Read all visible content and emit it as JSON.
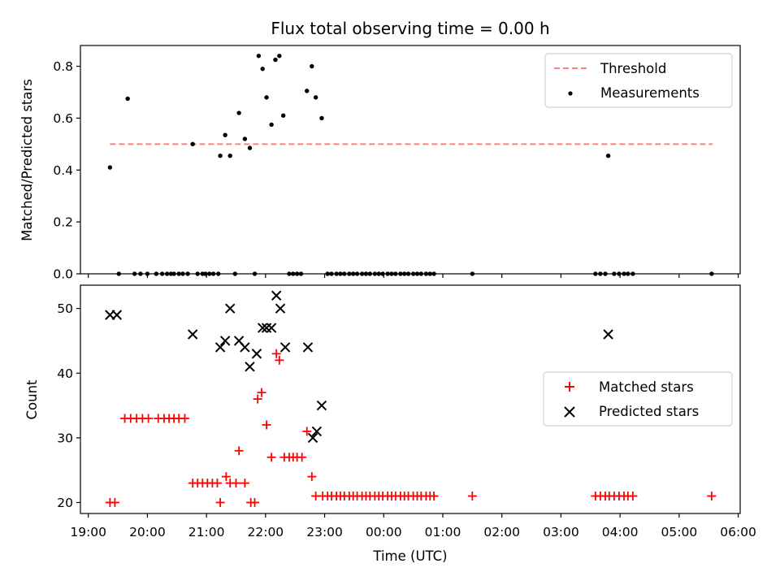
{
  "chart_data": [
    {
      "type": "scatter",
      "title": "Flux total observing time = 0.00 h",
      "xlabel": "",
      "ylabel": "Matched/Predicted stars",
      "xlim": [
        "18:52",
        "06:02"
      ],
      "ylim": [
        0,
        0.88
      ],
      "yticks": [
        "0.0",
        "0.2",
        "0.4",
        "0.6",
        "0.8"
      ],
      "legend": "top-right",
      "grid": false,
      "series": [
        {
          "name": "Threshold",
          "style": "dashed-line",
          "color": "#ff7f7f",
          "points": [
            [
              "19:22",
              0.5
            ],
            [
              "05:34",
              0.5
            ]
          ]
        },
        {
          "name": "Measurements",
          "style": "dot",
          "color": "#000000",
          "points": [
            [
              "19:22",
              0.41
            ],
            [
              "19:31",
              0.0
            ],
            [
              "19:40",
              0.675
            ],
            [
              "19:47",
              0.0
            ],
            [
              "19:53",
              0.0
            ],
            [
              "20:00",
              0.0
            ],
            [
              "20:09",
              0.0
            ],
            [
              "20:15",
              0.0
            ],
            [
              "20:20",
              0.0
            ],
            [
              "20:24",
              0.0
            ],
            [
              "20:27",
              0.0
            ],
            [
              "20:32",
              0.0
            ],
            [
              "20:36",
              0.0
            ],
            [
              "20:41",
              0.0
            ],
            [
              "20:46",
              0.5
            ],
            [
              "20:51",
              0.0
            ],
            [
              "20:56",
              0.0
            ],
            [
              "20:59",
              0.0
            ],
            [
              "21:03",
              0.0
            ],
            [
              "21:07",
              0.0
            ],
            [
              "21:12",
              0.0
            ],
            [
              "21:14",
              0.455
            ],
            [
              "21:19",
              0.535
            ],
            [
              "21:24",
              0.455
            ],
            [
              "21:29",
              0.0
            ],
            [
              "21:33",
              0.62
            ],
            [
              "21:39",
              0.52
            ],
            [
              "21:44",
              0.485
            ],
            [
              "21:49",
              0.0
            ],
            [
              "21:53",
              0.84
            ],
            [
              "21:57",
              0.79
            ],
            [
              "22:01",
              0.68
            ],
            [
              "22:06",
              0.575
            ],
            [
              "22:10",
              0.825
            ],
            [
              "22:14",
              0.84
            ],
            [
              "22:18",
              0.61
            ],
            [
              "22:24",
              0.0
            ],
            [
              "22:28",
              0.0
            ],
            [
              "22:32",
              0.0
            ],
            [
              "22:36",
              0.0
            ],
            [
              "22:42",
              0.705
            ],
            [
              "22:47",
              0.8
            ],
            [
              "22:51",
              0.68
            ],
            [
              "22:57",
              0.6
            ],
            [
              "23:03",
              0.0
            ],
            [
              "23:07",
              0.0
            ],
            [
              "23:12",
              0.0
            ],
            [
              "23:16",
              0.0
            ],
            [
              "23:20",
              0.0
            ],
            [
              "23:25",
              0.0
            ],
            [
              "23:29",
              0.0
            ],
            [
              "23:33",
              0.0
            ],
            [
              "23:38",
              0.0
            ],
            [
              "23:42",
              0.0
            ],
            [
              "23:46",
              0.0
            ],
            [
              "23:51",
              0.0
            ],
            [
              "23:55",
              0.0
            ],
            [
              "23:59",
              0.0
            ],
            [
              "00:04",
              0.0
            ],
            [
              "00:08",
              0.0
            ],
            [
              "00:12",
              0.0
            ],
            [
              "00:17",
              0.0
            ],
            [
              "00:21",
              0.0
            ],
            [
              "00:25",
              0.0
            ],
            [
              "00:30",
              0.0
            ],
            [
              "00:34",
              0.0
            ],
            [
              "00:38",
              0.0
            ],
            [
              "00:43",
              0.0
            ],
            [
              "00:47",
              0.0
            ],
            [
              "00:51",
              0.0
            ],
            [
              "01:30",
              0.0
            ],
            [
              "03:35",
              0.0
            ],
            [
              "03:40",
              0.0
            ],
            [
              "03:45",
              0.0
            ],
            [
              "03:48",
              0.455
            ],
            [
              "03:54",
              0.0
            ],
            [
              "03:59",
              0.0
            ],
            [
              "04:04",
              0.0
            ],
            [
              "04:08",
              0.0
            ],
            [
              "04:13",
              0.0
            ],
            [
              "05:33",
              0.0
            ]
          ]
        }
      ]
    },
    {
      "type": "scatter",
      "title": "",
      "xlabel": "Time (UTC)",
      "ylabel": "Count",
      "xlim": [
        "18:52",
        "06:02"
      ],
      "ylim": [
        18.3,
        53.6
      ],
      "yticks": [
        "20",
        "30",
        "40",
        "50"
      ],
      "xticks": [
        "19:00",
        "20:00",
        "21:00",
        "22:00",
        "23:00",
        "00:00",
        "01:00",
        "02:00",
        "03:00",
        "04:00",
        "05:00",
        "06:00"
      ],
      "legend": "center-right",
      "grid": false,
      "series": [
        {
          "name": "Matched stars",
          "style": "plus",
          "color": "#ff0000",
          "points": [
            [
              "19:22",
              20
            ],
            [
              "19:27",
              20
            ],
            [
              "19:37",
              33
            ],
            [
              "19:43",
              33
            ],
            [
              "19:49",
              33
            ],
            [
              "19:55",
              33
            ],
            [
              "20:01",
              33
            ],
            [
              "20:11",
              33
            ],
            [
              "20:17",
              33
            ],
            [
              "20:22",
              33
            ],
            [
              "20:27",
              33
            ],
            [
              "20:32",
              33
            ],
            [
              "20:38",
              33
            ],
            [
              "20:46",
              23
            ],
            [
              "20:51",
              23
            ],
            [
              "20:56",
              23
            ],
            [
              "21:01",
              23
            ],
            [
              "21:06",
              23
            ],
            [
              "21:11",
              23
            ],
            [
              "21:14",
              20
            ],
            [
              "21:20",
              24
            ],
            [
              "21:24",
              23
            ],
            [
              "21:30",
              23
            ],
            [
              "21:33",
              28
            ],
            [
              "21:39",
              23
            ],
            [
              "21:45",
              20
            ],
            [
              "21:49",
              20
            ],
            [
              "21:52",
              36
            ],
            [
              "21:56",
              37
            ],
            [
              "22:01",
              32
            ],
            [
              "22:06",
              27
            ],
            [
              "22:11",
              43
            ],
            [
              "22:14",
              42
            ],
            [
              "22:19",
              27
            ],
            [
              "22:24",
              27
            ],
            [
              "22:28",
              27
            ],
            [
              "22:32",
              27
            ],
            [
              "22:37",
              27
            ],
            [
              "22:42",
              31
            ],
            [
              "22:47",
              24
            ],
            [
              "22:51",
              21
            ],
            [
              "22:58",
              21
            ],
            [
              "23:03",
              21
            ],
            [
              "23:07",
              21
            ],
            [
              "23:12",
              21
            ],
            [
              "23:16",
              21
            ],
            [
              "23:20",
              21
            ],
            [
              "23:25",
              21
            ],
            [
              "23:29",
              21
            ],
            [
              "23:33",
              21
            ],
            [
              "23:38",
              21
            ],
            [
              "23:42",
              21
            ],
            [
              "23:46",
              21
            ],
            [
              "23:51",
              21
            ],
            [
              "23:55",
              21
            ],
            [
              "23:59",
              21
            ],
            [
              "00:04",
              21
            ],
            [
              "00:08",
              21
            ],
            [
              "00:12",
              21
            ],
            [
              "00:17",
              21
            ],
            [
              "00:21",
              21
            ],
            [
              "00:25",
              21
            ],
            [
              "00:30",
              21
            ],
            [
              "00:34",
              21
            ],
            [
              "00:38",
              21
            ],
            [
              "00:43",
              21
            ],
            [
              "00:47",
              21
            ],
            [
              "00:51",
              21
            ],
            [
              "01:30",
              21
            ],
            [
              "03:35",
              21
            ],
            [
              "03:40",
              21
            ],
            [
              "03:45",
              21
            ],
            [
              "03:49",
              21
            ],
            [
              "03:54",
              21
            ],
            [
              "03:59",
              21
            ],
            [
              "04:04",
              21
            ],
            [
              "04:08",
              21
            ],
            [
              "04:13",
              21
            ],
            [
              "05:33",
              21
            ]
          ]
        },
        {
          "name": "Predicted stars",
          "style": "x",
          "color": "#000000",
          "points": [
            [
              "19:22",
              49
            ],
            [
              "19:29",
              49
            ],
            [
              "20:46",
              46
            ],
            [
              "21:14",
              44
            ],
            [
              "21:19",
              45
            ],
            [
              "21:24",
              50
            ],
            [
              "21:33",
              45
            ],
            [
              "21:39",
              44
            ],
            [
              "21:44",
              41
            ],
            [
              "21:51",
              43
            ],
            [
              "21:57",
              47
            ],
            [
              "22:01",
              47
            ],
            [
              "22:06",
              47
            ],
            [
              "22:11",
              52
            ],
            [
              "22:15",
              50
            ],
            [
              "22:20",
              44
            ],
            [
              "22:43",
              44
            ],
            [
              "22:48",
              30
            ],
            [
              "22:52",
              31
            ],
            [
              "22:57",
              35
            ],
            [
              "03:48",
              46
            ]
          ]
        }
      ]
    }
  ]
}
